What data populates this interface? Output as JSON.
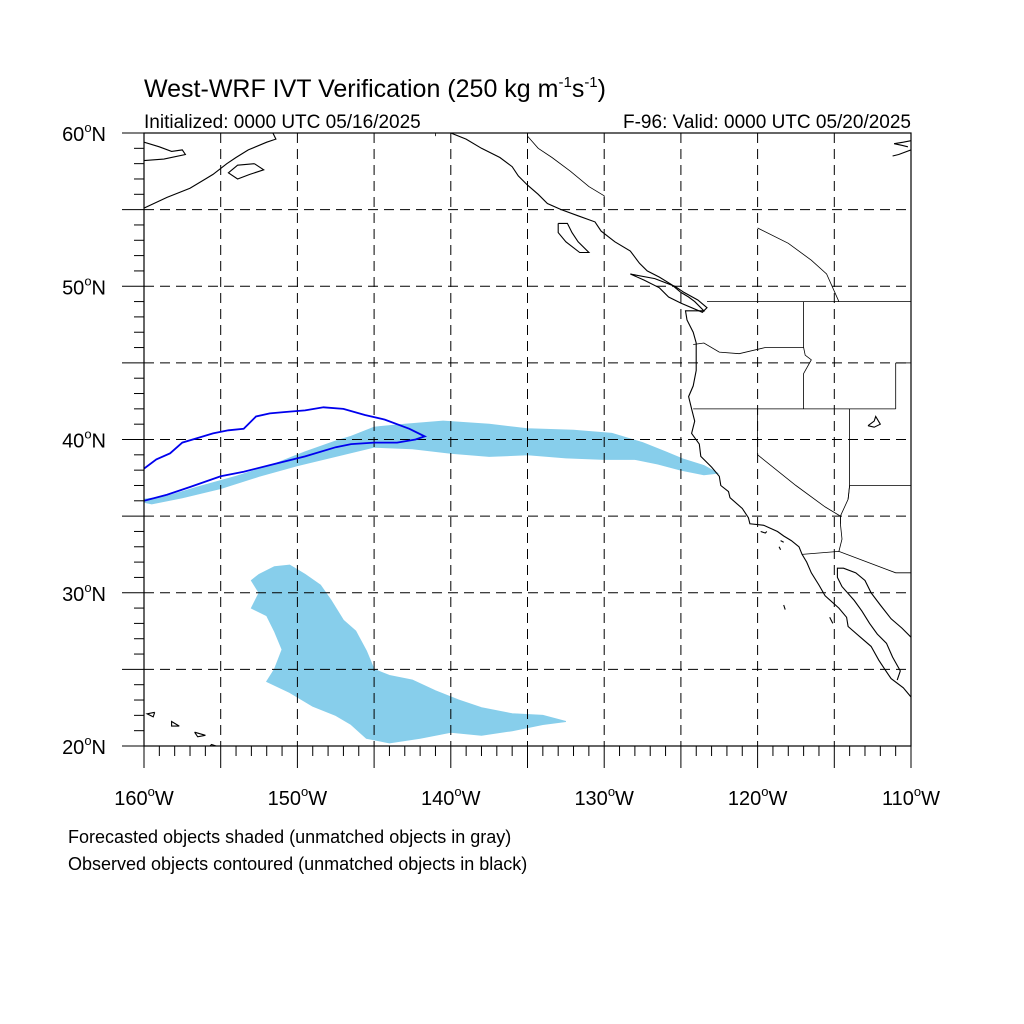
{
  "title": "West-WRF IVT Verification (250 kg m",
  "title_exp1": "-1",
  "title_mid": "s",
  "title_exp2": "-1",
  "title_end": ")",
  "initialized": "Initialized: 0000 UTC 05/16/2025",
  "valid": "F-96: Valid: 0000 UTC 05/20/2025",
  "lat_ticks": [
    {
      "value": 60,
      "label": "60",
      "hemi": "N"
    },
    {
      "value": 50,
      "label": "50",
      "hemi": "N"
    },
    {
      "value": 40,
      "label": "40",
      "hemi": "N"
    },
    {
      "value": 30,
      "label": "30",
      "hemi": "N"
    },
    {
      "value": 20,
      "label": "20",
      "hemi": "N"
    }
  ],
  "lon_ticks": [
    {
      "value": -160,
      "label": "160",
      "hemi": "W"
    },
    {
      "value": -150,
      "label": "150",
      "hemi": "W"
    },
    {
      "value": -140,
      "label": "140",
      "hemi": "W"
    },
    {
      "value": -130,
      "label": "130",
      "hemi": "W"
    },
    {
      "value": -120,
      "label": "120",
      "hemi": "W"
    },
    {
      "value": -110,
      "label": "110",
      "hemi": "W"
    }
  ],
  "degree_symbol": "o",
  "extent": {
    "lon": [
      -160,
      -110
    ],
    "lat": [
      20,
      60
    ]
  },
  "grid_lons": [
    -155,
    -150,
    -145,
    -140,
    -135,
    -130,
    -125,
    -120,
    -115
  ],
  "grid_lats": [
    55,
    50,
    45,
    40,
    35,
    30,
    25
  ],
  "footnote1": "Forecasted objects shaded (unmatched objects in gray)",
  "footnote2": "Observed objects contoured (unmatched objects in black)",
  "colors": {
    "forecast_fill": "#87ceeb",
    "observed_contour": "#0000ee",
    "coast": "#000000"
  },
  "forecast_objects": [
    {
      "name": "northern-forecast-object",
      "lonlat": [
        [
          -160,
          36.1
        ],
        [
          -158.5,
          36.3
        ],
        [
          -156.5,
          36.9
        ],
        [
          -154,
          37.6
        ],
        [
          -151.5,
          38.4
        ],
        [
          -149.5,
          39.2
        ],
        [
          -147.5,
          39.9
        ],
        [
          -146.5,
          40.2
        ],
        [
          -145,
          40.8
        ],
        [
          -143,
          41.0
        ],
        [
          -140.5,
          41.2
        ],
        [
          -137.5,
          41.0
        ],
        [
          -135,
          40.7
        ],
        [
          -132,
          40.6
        ],
        [
          -129.5,
          40.4
        ],
        [
          -127.5,
          39.8
        ],
        [
          -126,
          39.2
        ],
        [
          -124.8,
          38.7
        ],
        [
          -123.5,
          38.3
        ],
        [
          -122.6,
          37.8
        ],
        [
          -123.5,
          37.7
        ],
        [
          -125,
          38.0
        ],
        [
          -126.5,
          38.4
        ],
        [
          -128,
          38.7
        ],
        [
          -130,
          38.7
        ],
        [
          -132.5,
          38.8
        ],
        [
          -135,
          39.0
        ],
        [
          -137.5,
          38.9
        ],
        [
          -140,
          39.1
        ],
        [
          -142.5,
          39.4
        ],
        [
          -145,
          39.5
        ],
        [
          -147.5,
          38.9
        ],
        [
          -150,
          38.3
        ],
        [
          -152.5,
          37.6
        ],
        [
          -155,
          36.8
        ],
        [
          -157.5,
          36.2
        ],
        [
          -159.5,
          35.8
        ],
        [
          -160,
          35.9
        ]
      ]
    },
    {
      "name": "southern-forecast-object",
      "lonlat": [
        [
          -152.5,
          31.2
        ],
        [
          -151.5,
          31.7
        ],
        [
          -150.5,
          31.8
        ],
        [
          -149.5,
          31.2
        ],
        [
          -148.5,
          30.5
        ],
        [
          -147.8,
          29.5
        ],
        [
          -147,
          28.2
        ],
        [
          -146.2,
          27.5
        ],
        [
          -145.5,
          26.2
        ],
        [
          -145,
          25.0
        ],
        [
          -144,
          24.6
        ],
        [
          -142.5,
          24.3
        ],
        [
          -141,
          23.6
        ],
        [
          -139.5,
          23.0
        ],
        [
          -138,
          22.5
        ],
        [
          -136,
          22.1
        ],
        [
          -134,
          22.0
        ],
        [
          -132.5,
          21.6
        ],
        [
          -134,
          21.4
        ],
        [
          -136,
          21.0
        ],
        [
          -138,
          20.7
        ],
        [
          -140,
          20.9
        ],
        [
          -142,
          20.5
        ],
        [
          -144,
          20.2
        ],
        [
          -145.5,
          20.5
        ],
        [
          -146.5,
          21.4
        ],
        [
          -147.5,
          22.0
        ],
        [
          -149,
          22.6
        ],
        [
          -150.5,
          23.5
        ],
        [
          -152,
          24.2
        ],
        [
          -151.5,
          25.0
        ],
        [
          -151,
          26.3
        ],
        [
          -151.5,
          27.5
        ],
        [
          -152,
          28.5
        ],
        [
          -153,
          29.0
        ],
        [
          -152.5,
          30.0
        ],
        [
          -153,
          30.8
        ]
      ]
    }
  ],
  "observed_object": {
    "name": "observed-contour",
    "lonlat": [
      [
        -160,
        38.1
      ],
      [
        -159.2,
        38.7
      ],
      [
        -158.3,
        39.1
      ],
      [
        -157.5,
        39.8
      ],
      [
        -156.5,
        40.1
      ],
      [
        -155.5,
        40.4
      ],
      [
        -154.5,
        40.6
      ],
      [
        -153.5,
        40.7
      ],
      [
        -152.7,
        41.5
      ],
      [
        -151.8,
        41.7
      ],
      [
        -150.7,
        41.8
      ],
      [
        -149.5,
        41.9
      ],
      [
        -148.3,
        42.1
      ],
      [
        -147,
        42.0
      ],
      [
        -145.6,
        41.6
      ],
      [
        -144.3,
        41.3
      ],
      [
        -142.7,
        40.7
      ],
      [
        -141.7,
        40.2
      ],
      [
        -142.3,
        40.0
      ],
      [
        -143.5,
        39.8
      ],
      [
        -145,
        39.8
      ],
      [
        -146.5,
        39.7
      ],
      [
        -147.5,
        39.5
      ],
      [
        -149.5,
        38.9
      ],
      [
        -151.5,
        38.4
      ],
      [
        -153.5,
        37.9
      ],
      [
        -155,
        37.6
      ],
      [
        -157,
        36.9
      ],
      [
        -158.5,
        36.4
      ],
      [
        -160,
        36.0
      ]
    ]
  },
  "coastlines": [
    [
      [
        -160,
        55.1
      ],
      [
        -158.5,
        55.8
      ],
      [
        -157,
        56.4
      ],
      [
        -156,
        57.0
      ],
      [
        -155.5,
        57.3
      ],
      [
        -154.6,
        58.0
      ],
      [
        -154,
        58.4
      ],
      [
        -153.2,
        58.9
      ],
      [
        -152,
        59.4
      ],
      [
        -151.4,
        59.6
      ],
      [
        -151.6,
        60.0
      ]
    ],
    [
      [
        -140,
        60.0
      ],
      [
        -139,
        59.6
      ],
      [
        -138,
        59.0
      ],
      [
        -136.8,
        58.4
      ],
      [
        -136,
        57.8
      ],
      [
        -135.6,
        57.2
      ],
      [
        -135,
        56.6
      ],
      [
        -134.3,
        56.0
      ],
      [
        -133.7,
        55.4
      ],
      [
        -132.8,
        55.0
      ],
      [
        -131.7,
        54.6
      ],
      [
        -130.6,
        54.2
      ],
      [
        -130.2,
        53.6
      ],
      [
        -129.3,
        52.9
      ],
      [
        -128.3,
        52.3
      ],
      [
        -127.7,
        51.5
      ],
      [
        -127.2,
        51.0
      ],
      [
        -126.4,
        50.6
      ],
      [
        -125.6,
        50.1
      ],
      [
        -125,
        49.6
      ],
      [
        -124.5,
        49.3
      ],
      [
        -124.1,
        49.0
      ],
      [
        -123.5,
        48.4
      ],
      [
        -124.7,
        48.4
      ],
      [
        -124.6,
        47.8
      ],
      [
        -124.2,
        47.0
      ],
      [
        -124,
        46.3
      ],
      [
        -124,
        45.5
      ],
      [
        -124,
        44.5
      ],
      [
        -124.2,
        43.5
      ],
      [
        -124.5,
        42.8
      ],
      [
        -124.3,
        42.0
      ],
      [
        -124.1,
        41.2
      ],
      [
        -124.3,
        40.4
      ],
      [
        -123.8,
        39.7
      ],
      [
        -123.7,
        38.9
      ],
      [
        -123,
        38.2
      ],
      [
        -122.5,
        37.6
      ],
      [
        -122.4,
        37.0
      ],
      [
        -121.9,
        36.6
      ],
      [
        -121.8,
        36.2
      ],
      [
        -121,
        35.5
      ],
      [
        -120.6,
        34.9
      ],
      [
        -120.5,
        34.5
      ],
      [
        -119.6,
        34.4
      ],
      [
        -118.7,
        34.0
      ],
      [
        -118.3,
        33.7
      ],
      [
        -117.8,
        33.4
      ],
      [
        -117.3,
        33.0
      ],
      [
        -117.1,
        32.5
      ],
      [
        -116.8,
        32.0
      ],
      [
        -116.5,
        31.3
      ],
      [
        -116,
        30.5
      ],
      [
        -115.6,
        29.8
      ],
      [
        -114.7,
        29.0
      ],
      [
        -114.2,
        28.4
      ],
      [
        -114.1,
        27.8
      ],
      [
        -113.3,
        27.1
      ],
      [
        -112.6,
        26.5
      ],
      [
        -112.1,
        25.6
      ],
      [
        -111.7,
        25.0
      ],
      [
        -111.3,
        24.4
      ],
      [
        -110.5,
        23.8
      ],
      [
        -110,
        23.2
      ]
    ],
    [
      [
        -110.9,
        24.3
      ],
      [
        -110.7,
        24.9
      ],
      [
        -111.2,
        25.8
      ],
      [
        -111.6,
        26.7
      ],
      [
        -112.2,
        27.3
      ],
      [
        -112.7,
        28.0
      ],
      [
        -113.2,
        28.8
      ],
      [
        -113.7,
        29.5
      ],
      [
        -114.5,
        30.4
      ],
      [
        -114.8,
        31.0
      ],
      [
        -114.8,
        31.6
      ],
      [
        -114.4,
        31.6
      ],
      [
        -113.6,
        31.3
      ],
      [
        -113,
        30.8
      ],
      [
        -112.6,
        30.0
      ],
      [
        -112,
        29.2
      ],
      [
        -111.3,
        28.3
      ],
      [
        -110.6,
        27.7
      ],
      [
        -110,
        27.1
      ]
    ],
    [
      [
        -128.3,
        50.8
      ],
      [
        -127.4,
        50.4
      ],
      [
        -126.4,
        49.9
      ],
      [
        -125.8,
        49.3
      ],
      [
        -125.0,
        48.9
      ],
      [
        -123.6,
        48.3
      ],
      [
        -123.3,
        48.6
      ],
      [
        -123.9,
        49.1
      ],
      [
        -124.8,
        49.6
      ],
      [
        -125.4,
        50.0
      ],
      [
        -126.7,
        50.5
      ],
      [
        -128.3,
        50.8
      ]
    ],
    [
      [
        -133,
        54.1
      ],
      [
        -132.4,
        54.1
      ],
      [
        -132.1,
        53.5
      ],
      [
        -131.7,
        52.9
      ],
      [
        -131,
        52.2
      ],
      [
        -131.6,
        52.2
      ],
      [
        -132.5,
        52.9
      ],
      [
        -133,
        53.5
      ],
      [
        -133,
        54.1
      ]
    ],
    [
      [
        -152.8,
        58.0
      ],
      [
        -152.2,
        57.6
      ],
      [
        -153.1,
        57.3
      ],
      [
        -153.9,
        57.0
      ],
      [
        -154.5,
        57.4
      ],
      [
        -153.9,
        57.9
      ],
      [
        -152.8,
        58.0
      ]
    ],
    [
      [
        -160,
        59.4
      ],
      [
        -159,
        59.1
      ],
      [
        -158.2,
        58.8
      ],
      [
        -157.5,
        58.9
      ],
      [
        -157.3,
        58.6
      ],
      [
        -158.7,
        58.3
      ],
      [
        -160,
        58.2
      ]
    ],
    [
      [
        -155,
        19.9
      ],
      [
        -155.6,
        20.1
      ],
      [
        -156,
        19.7
      ],
      [
        -155.5,
        19.2
      ],
      [
        -155,
        19.6
      ],
      [
        -155,
        19.9
      ]
    ],
    [
      [
        -156.7,
        20.9
      ],
      [
        -156,
        20.7
      ],
      [
        -156.5,
        20.6
      ],
      [
        -156.7,
        20.9
      ]
    ],
    [
      [
        -157.7,
        21.3
      ],
      [
        -158.2,
        21.6
      ],
      [
        -158.2,
        21.3
      ],
      [
        -157.7,
        21.3
      ]
    ],
    [
      [
        -159.3,
        22.2
      ],
      [
        -159.8,
        22.1
      ],
      [
        -159.4,
        21.9
      ],
      [
        -159.3,
        22.2
      ]
    ],
    [
      [
        -119.8,
        34.0
      ],
      [
        -119.5,
        33.9
      ],
      [
        -119.4,
        34.0
      ]
    ],
    [
      [
        -118.5,
        33.4
      ],
      [
        -118.3,
        33.3
      ]
    ],
    [
      [
        -118.6,
        33.0
      ],
      [
        -118.5,
        32.8
      ]
    ],
    [
      [
        -118.3,
        29.2
      ],
      [
        -118.2,
        28.9
      ]
    ],
    [
      [
        -115.3,
        28.4
      ],
      [
        -115.1,
        28.0
      ]
    ],
    [
      [
        -112.8,
        40.9
      ],
      [
        -112.4,
        41.2
      ],
      [
        -112.3,
        41.5
      ],
      [
        -112.0,
        41.0
      ],
      [
        -112.4,
        40.8
      ],
      [
        -112.8,
        40.9
      ]
    ],
    [
      [
        -110.2,
        59.1
      ],
      [
        -110.6,
        59.2
      ],
      [
        -111.1,
        59.3
      ],
      [
        -110.5,
        59.4
      ],
      [
        -110,
        59.5
      ]
    ],
    [
      [
        -110.0,
        58.9
      ],
      [
        -110.8,
        58.6
      ],
      [
        -111.2,
        58.5
      ]
    ]
  ],
  "borders": [
    [
      [
        -123.3,
        49.0
      ],
      [
        -110,
        49.0
      ]
    ],
    [
      [
        -117.0,
        49.0
      ],
      [
        -117.0,
        46.0
      ],
      [
        -116.9,
        45.5
      ],
      [
        -116.5,
        45.2
      ],
      [
        -117.0,
        44.3
      ],
      [
        -117.0,
        42.0
      ]
    ],
    [
      [
        -124.2,
        46.2
      ],
      [
        -123.5,
        46.3
      ],
      [
        -122.5,
        45.7
      ],
      [
        -121.2,
        45.6
      ],
      [
        -119.5,
        46.0
      ],
      [
        -117.0,
        46.0
      ]
    ],
    [
      [
        -124.2,
        42.0
      ],
      [
        -111.0,
        42.0
      ]
    ],
    [
      [
        -120.0,
        42.0
      ],
      [
        -120.0,
        39.0
      ],
      [
        -117.5,
        37.0
      ],
      [
        -115.6,
        35.6
      ],
      [
        -114.6,
        35.0
      ],
      [
        -114.6,
        34.5
      ]
    ],
    [
      [
        -114.0,
        42.0
      ],
      [
        -114.0,
        37.0
      ],
      [
        -114.1,
        36.1
      ]
    ],
    [
      [
        -117.1,
        32.5
      ],
      [
        -114.7,
        32.7
      ],
      [
        -111.0,
        31.3
      ],
      [
        -110,
        31.3
      ]
    ],
    [
      [
        -114.7,
        32.7
      ],
      [
        -114.5,
        33.5
      ],
      [
        -114.6,
        34.5
      ],
      [
        -114.6,
        35.0
      ],
      [
        -114.1,
        36.1
      ],
      [
        -114.0,
        37.0
      ],
      [
        -110,
        37.0
      ]
    ],
    [
      [
        -111.0,
        45.0
      ],
      [
        -111.0,
        42.0
      ]
    ],
    [
      [
        -111.0,
        45.0
      ],
      [
        -110,
        45.0
      ]
    ],
    [
      [
        -135,
        59.8
      ],
      [
        -134.3,
        59.0
      ],
      [
        -133.4,
        58.4
      ],
      [
        -132.2,
        57.5
      ],
      [
        -131.0,
        56.5
      ],
      [
        -130.0,
        55.9
      ],
      [
        -130.0,
        55.3
      ]
    ],
    [
      [
        -141.0,
        60.0
      ],
      [
        -141.0,
        59.8
      ]
    ],
    [
      [
        -120.0,
        53.8
      ],
      [
        -118.0,
        52.8
      ],
      [
        -116.5,
        51.7
      ],
      [
        -115.5,
        50.8
      ],
      [
        -114.7,
        49.0
      ]
    ]
  ]
}
